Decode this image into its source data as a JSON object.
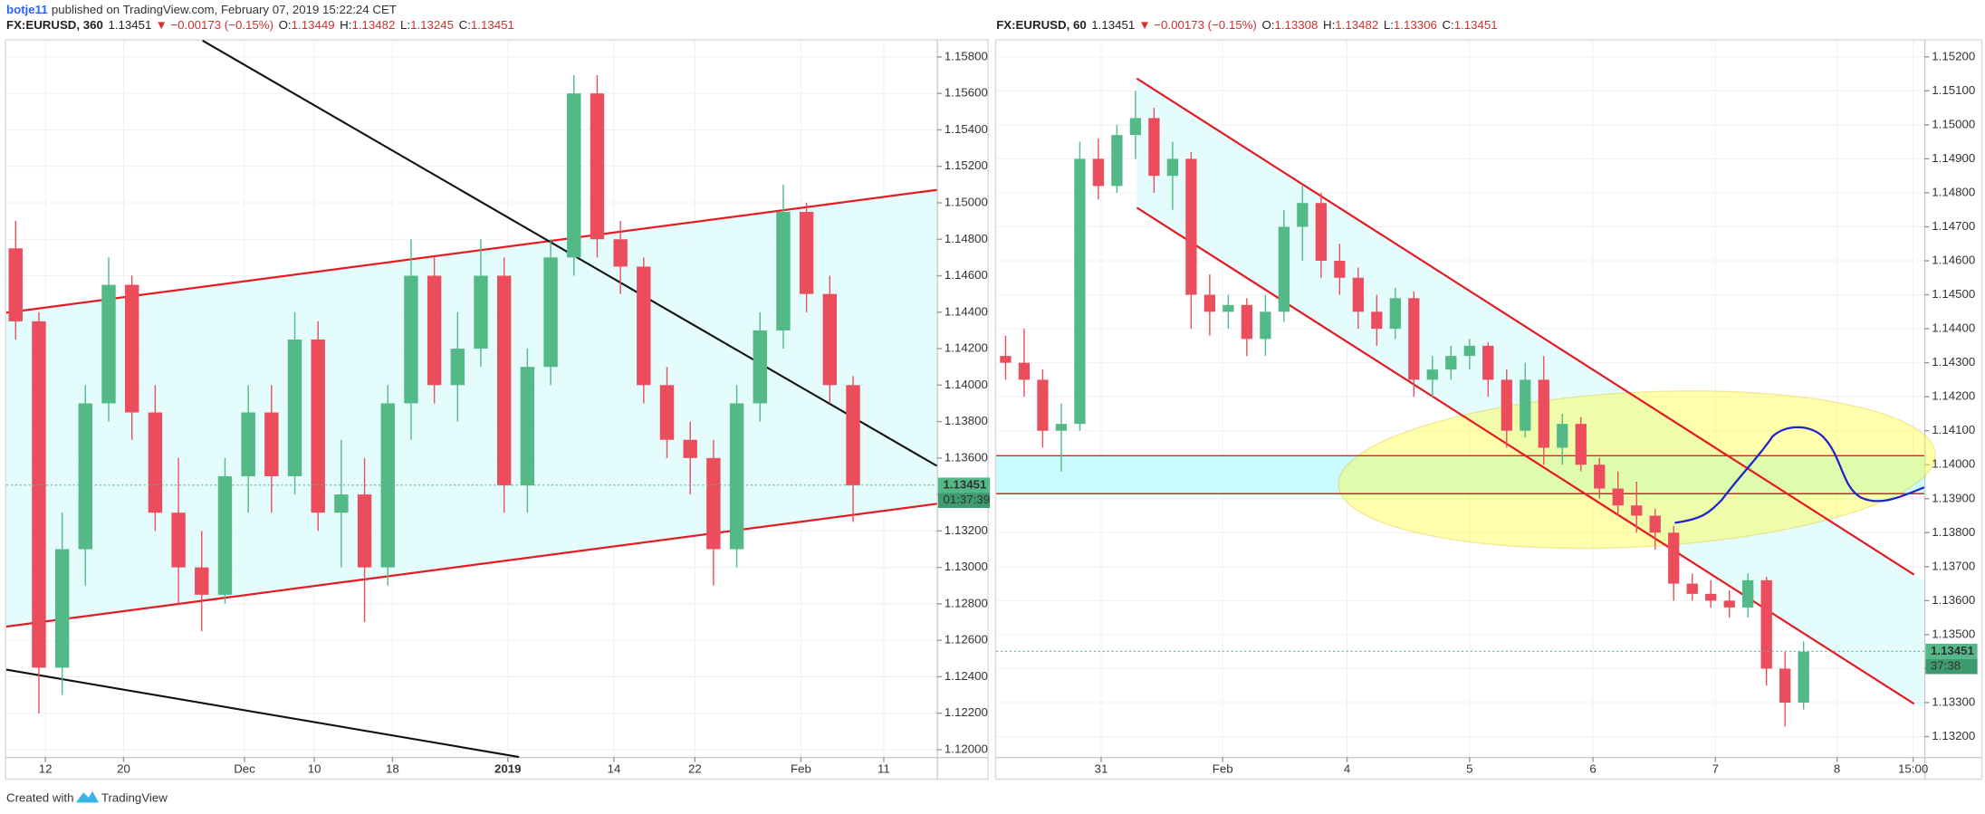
{
  "header": {
    "author": "botje11",
    "published": "published on TradingView.com, February 07, 2019 15:22:24 CET"
  },
  "footer": {
    "created": "Created with",
    "brand": "TradingView"
  },
  "chart_data": [
    {
      "type": "candlestick",
      "symbol": "FX:EURUSD, 360",
      "last": "1.13451",
      "change": "▼ −0.00173 (−0.15%)",
      "ohlc": [
        {
          "label": "O:",
          "value": "1.13449"
        },
        {
          "label": "H:",
          "value": "1.13482"
        },
        {
          "label": "L:",
          "value": "1.13245"
        },
        {
          "label": "C:",
          "value": "1.13451"
        }
      ],
      "up_color": "#53b987",
      "down_color": "#eb4d5c",
      "grid": true,
      "xlim": [
        0,
        100
      ],
      "xticks": [
        {
          "value": 4.2,
          "label": "12"
        },
        {
          "value": 12.6,
          "label": "20"
        },
        {
          "value": 25.6,
          "label": "Dec"
        },
        {
          "value": 33.1,
          "label": "10"
        },
        {
          "value": 41.5,
          "label": "18"
        },
        {
          "value": 53.9,
          "label": "2019"
        },
        {
          "value": 65.3,
          "label": "14"
        },
        {
          "value": 74,
          "label": "22"
        },
        {
          "value": 85.4,
          "label": "Feb"
        },
        {
          "value": 94.3,
          "label": "11"
        }
      ],
      "ylim": [
        1.1196,
        1.1589
      ],
      "yticks": [
        {
          "value": 1.12,
          "label": "1.12000"
        },
        {
          "value": 1.122,
          "label": "1.12200"
        },
        {
          "value": 1.124,
          "label": "1.12400"
        },
        {
          "value": 1.126,
          "label": "1.12600"
        },
        {
          "value": 1.128,
          "label": "1.12800"
        },
        {
          "value": 1.13,
          "label": "1.13000"
        },
        {
          "value": 1.132,
          "label": "1.13200"
        },
        {
          "value": 1.134,
          "label": "1.13400"
        },
        {
          "value": 1.136,
          "label": "1.13600"
        },
        {
          "value": 1.138,
          "label": "1.13800"
        },
        {
          "value": 1.14,
          "label": "1.14000"
        },
        {
          "value": 1.142,
          "label": "1.14200"
        },
        {
          "value": 1.144,
          "label": "1.14400"
        },
        {
          "value": 1.146,
          "label": "1.14600"
        },
        {
          "value": 1.148,
          "label": "1.14800"
        },
        {
          "value": 1.15,
          "label": "1.15000"
        },
        {
          "value": 1.152,
          "label": "1.15200"
        },
        {
          "value": 1.154,
          "label": "1.15400"
        },
        {
          "value": 1.156,
          "label": "1.15600"
        },
        {
          "value": 1.158,
          "label": "1.15800"
        }
      ],
      "x": [
        1,
        3.5,
        6,
        8.5,
        11,
        13.5,
        16,
        18.5,
        21,
        23.5,
        26,
        28.5,
        31,
        33.5,
        36,
        38.5,
        41,
        43.5,
        46,
        48.5,
        51,
        53.5,
        56,
        58.5,
        61,
        63.5,
        66,
        68.5,
        71,
        73.5,
        76,
        78.5,
        81,
        83.5,
        86,
        88.5,
        91
      ],
      "open": [
        1.1475,
        1.1435,
        1.1245,
        1.131,
        1.139,
        1.1455,
        1.1385,
        1.133,
        1.13,
        1.1285,
        1.135,
        1.1385,
        1.135,
        1.1425,
        1.133,
        1.134,
        1.13,
        1.139,
        1.146,
        1.14,
        1.142,
        1.146,
        1.1345,
        1.141,
        1.147,
        1.156,
        1.148,
        1.1465,
        1.14,
        1.137,
        1.136,
        1.131,
        1.139,
        1.143,
        1.1495,
        1.145,
        1.14
      ],
      "high": [
        1.149,
        1.144,
        1.133,
        1.14,
        1.147,
        1.146,
        1.14,
        1.136,
        1.132,
        1.136,
        1.14,
        1.14,
        1.144,
        1.1435,
        1.137,
        1.136,
        1.14,
        1.148,
        1.147,
        1.144,
        1.148,
        1.147,
        1.142,
        1.148,
        1.157,
        1.157,
        1.149,
        1.147,
        1.141,
        1.138,
        1.137,
        1.14,
        1.144,
        1.151,
        1.15,
        1.146,
        1.1405
      ],
      "low": [
        1.1425,
        1.122,
        1.123,
        1.129,
        1.138,
        1.137,
        1.132,
        1.128,
        1.1265,
        1.128,
        1.133,
        1.133,
        1.134,
        1.132,
        1.13,
        1.127,
        1.129,
        1.137,
        1.139,
        1.138,
        1.141,
        1.133,
        1.133,
        1.14,
        1.146,
        1.147,
        1.145,
        1.139,
        1.136,
        1.134,
        1.129,
        1.13,
        1.138,
        1.142,
        1.144,
        1.139,
        1.1325
      ],
      "close": [
        1.1435,
        1.1245,
        1.131,
        1.139,
        1.1455,
        1.1385,
        1.133,
        1.13,
        1.1285,
        1.135,
        1.1385,
        1.135,
        1.1425,
        1.133,
        1.134,
        1.13,
        1.139,
        1.146,
        1.14,
        1.142,
        1.146,
        1.1345,
        1.141,
        1.147,
        1.156,
        1.148,
        1.1465,
        1.14,
        1.137,
        1.136,
        1.131,
        1.139,
        1.143,
        1.1495,
        1.145,
        1.14,
        1.1345
      ],
      "price_line": {
        "value": 1.13451,
        "label": "1.13451",
        "countdown": "01:37:39"
      }
    },
    {
      "type": "candlestick",
      "symbol": "FX:EURUSD, 60",
      "last": "1.13451",
      "change": "▼ −0.00173 (−0.15%)",
      "ohlc": [
        {
          "label": "O:",
          "value": "1.13308"
        },
        {
          "label": "H:",
          "value": "1.13482"
        },
        {
          "label": "L:",
          "value": "1.13306"
        },
        {
          "label": "C:",
          "value": "1.13451"
        }
      ],
      "up_color": "#53b987",
      "down_color": "#eb4d5c",
      "grid": true,
      "xlim": [
        0,
        100
      ],
      "xticks": [
        {
          "value": 11.3,
          "label": "31"
        },
        {
          "value": 24.4,
          "label": "Feb"
        },
        {
          "value": 37.8,
          "label": "4"
        },
        {
          "value": 51,
          "label": "5"
        },
        {
          "value": 64.3,
          "label": "6"
        },
        {
          "value": 77.5,
          "label": "7"
        },
        {
          "value": 90.6,
          "label": "8"
        },
        {
          "value": 98.8,
          "label": "15:00"
        }
      ],
      "ylim": [
        1.1314,
        1.15248
      ],
      "yticks": [
        {
          "value": 1.132,
          "label": "1.13200"
        },
        {
          "value": 1.133,
          "label": "1.13300"
        },
        {
          "value": 1.134,
          "label": "1.13400"
        },
        {
          "value": 1.135,
          "label": "1.13500"
        },
        {
          "value": 1.136,
          "label": "1.13600"
        },
        {
          "value": 1.137,
          "label": "1.13700"
        },
        {
          "value": 1.138,
          "label": "1.13800"
        },
        {
          "value": 1.139,
          "label": "1.13900"
        },
        {
          "value": 1.14,
          "label": "1.14000"
        },
        {
          "value": 1.141,
          "label": "1.14100"
        },
        {
          "value": 1.142,
          "label": "1.14200"
        },
        {
          "value": 1.143,
          "label": "1.14300"
        },
        {
          "value": 1.144,
          "label": "1.14400"
        },
        {
          "value": 1.145,
          "label": "1.14500"
        },
        {
          "value": 1.146,
          "label": "1.14600"
        },
        {
          "value": 1.147,
          "label": "1.14700"
        },
        {
          "value": 1.148,
          "label": "1.14800"
        },
        {
          "value": 1.149,
          "label": "1.14900"
        },
        {
          "value": 1.15,
          "label": "1.15000"
        },
        {
          "value": 1.151,
          "label": "1.15100"
        },
        {
          "value": 1.152,
          "label": "1.15200"
        }
      ],
      "x": [
        1,
        3,
        5,
        7,
        9,
        11,
        13,
        15,
        17,
        19,
        21,
        23,
        25,
        27,
        29,
        31,
        33,
        35,
        37,
        39,
        41,
        43,
        45,
        47,
        49,
        51,
        53,
        55,
        57,
        59,
        61,
        63,
        65,
        67,
        69,
        71,
        73,
        75,
        77,
        79,
        81,
        83,
        85,
        87
      ],
      "open": [
        1.1432,
        1.143,
        1.1425,
        1.141,
        1.1412,
        1.149,
        1.1482,
        1.1497,
        1.1502,
        1.1485,
        1.149,
        1.145,
        1.1445,
        1.1447,
        1.1437,
        1.1445,
        1.147,
        1.1477,
        1.146,
        1.1455,
        1.1445,
        1.144,
        1.1449,
        1.1425,
        1.1428,
        1.1432,
        1.1435,
        1.1425,
        1.141,
        1.1425,
        1.1405,
        1.1412,
        1.14,
        1.1393,
        1.1388,
        1.1385,
        1.138,
        1.1365,
        1.1362,
        1.136,
        1.1358,
        1.1366,
        1.134,
        1.133
      ],
      "high": [
        1.1438,
        1.144,
        1.1428,
        1.1418,
        1.1495,
        1.1496,
        1.15,
        1.151,
        1.1505,
        1.1495,
        1.1492,
        1.1456,
        1.145,
        1.1449,
        1.145,
        1.1475,
        1.1482,
        1.148,
        1.1465,
        1.1458,
        1.145,
        1.1452,
        1.1451,
        1.1432,
        1.1435,
        1.1437,
        1.1436,
        1.1428,
        1.143,
        1.1432,
        1.1415,
        1.1414,
        1.1402,
        1.1398,
        1.1395,
        1.1387,
        1.1382,
        1.1368,
        1.1366,
        1.1363,
        1.1368,
        1.1367,
        1.1345,
        1.1348
      ],
      "low": [
        1.1425,
        1.142,
        1.1405,
        1.1398,
        1.141,
        1.1478,
        1.148,
        1.149,
        1.148,
        1.1475,
        1.144,
        1.1438,
        1.144,
        1.1432,
        1.1432,
        1.1442,
        1.146,
        1.1455,
        1.145,
        1.144,
        1.1435,
        1.1437,
        1.142,
        1.142,
        1.1425,
        1.1428,
        1.142,
        1.1405,
        1.1408,
        1.14,
        1.14,
        1.1398,
        1.139,
        1.1385,
        1.138,
        1.1375,
        1.136,
        1.136,
        1.1358,
        1.1355,
        1.1355,
        1.1335,
        1.1323,
        1.1328
      ],
      "close": [
        1.143,
        1.1425,
        1.141,
        1.1412,
        1.149,
        1.1482,
        1.1497,
        1.1502,
        1.1485,
        1.149,
        1.145,
        1.1445,
        1.1447,
        1.1437,
        1.1445,
        1.147,
        1.1477,
        1.146,
        1.1455,
        1.1445,
        1.144,
        1.1449,
        1.1425,
        1.1428,
        1.1432,
        1.1435,
        1.1425,
        1.141,
        1.1425,
        1.1405,
        1.1412,
        1.14,
        1.1393,
        1.1388,
        1.1385,
        1.138,
        1.1365,
        1.1362,
        1.136,
        1.1358,
        1.1366,
        1.134,
        1.133,
        1.1345
      ],
      "price_line": {
        "value": 1.13451,
        "label": "1.13451",
        "countdown": "37:38"
      }
    }
  ]
}
